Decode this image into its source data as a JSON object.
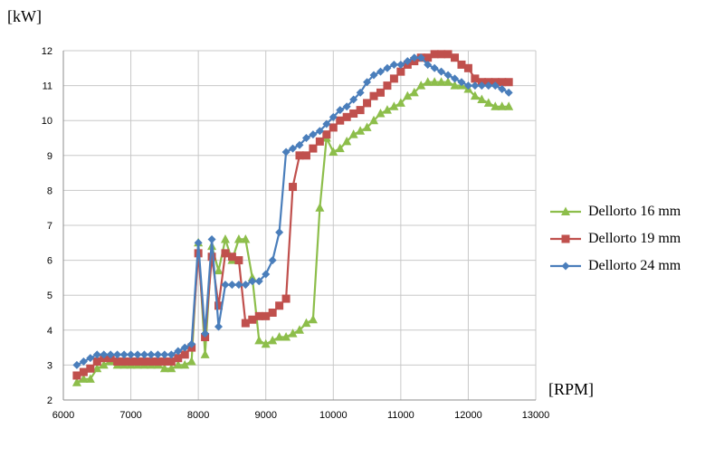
{
  "chart_data": {
    "type": "line",
    "title": "",
    "xlabel": "[RPM]",
    "ylabel": "[kW]",
    "xlim": [
      6000,
      13000
    ],
    "ylim": [
      2,
      12
    ],
    "xticks": [
      6000,
      7000,
      8000,
      9000,
      10000,
      11000,
      12000,
      13000
    ],
    "yticks": [
      2,
      3,
      4,
      5,
      6,
      7,
      8,
      9,
      10,
      11,
      12
    ],
    "grid": true,
    "legend_position": "right",
    "series": [
      {
        "name": "Dellorto 16 mm",
        "color": "#8dbe4b",
        "marker": "triangle",
        "x": [
          6200,
          6300,
          6400,
          6500,
          6600,
          6700,
          6800,
          6900,
          7000,
          7100,
          7200,
          7300,
          7400,
          7500,
          7600,
          7700,
          7800,
          7900,
          8000,
          8100,
          8200,
          8300,
          8400,
          8500,
          8600,
          8700,
          8800,
          8900,
          9000,
          9100,
          9200,
          9300,
          9400,
          9500,
          9600,
          9700,
          9800,
          9900,
          10000,
          10100,
          10200,
          10300,
          10400,
          10500,
          10600,
          10700,
          10800,
          10900,
          11000,
          11100,
          11200,
          11300,
          11400,
          11500,
          11600,
          11700,
          11800,
          11900,
          12000,
          12100,
          12200,
          12300,
          12400,
          12500,
          12600
        ],
        "values": [
          2.5,
          2.6,
          2.6,
          2.9,
          3.0,
          3.1,
          3.0,
          3.0,
          3.0,
          3.0,
          3.0,
          3.0,
          3.0,
          2.9,
          2.9,
          3.0,
          3.0,
          3.1,
          6.5,
          3.3,
          6.4,
          5.7,
          6.6,
          6.0,
          6.6,
          6.6,
          5.5,
          3.7,
          3.6,
          3.7,
          3.8,
          3.8,
          3.9,
          4.0,
          4.2,
          4.3,
          7.5,
          9.5,
          9.1,
          9.2,
          9.4,
          9.6,
          9.7,
          9.8,
          10.0,
          10.2,
          10.3,
          10.4,
          10.5,
          10.7,
          10.8,
          11.0,
          11.1,
          11.1,
          11.1,
          11.1,
          11.0,
          11.0,
          10.9,
          10.7,
          10.6,
          10.5,
          10.4,
          10.4,
          10.4
        ]
      },
      {
        "name": "Dellorto 19 mm",
        "color": "#c0504d",
        "marker": "square",
        "x": [
          6200,
          6300,
          6400,
          6500,
          6600,
          6700,
          6800,
          6900,
          7000,
          7100,
          7200,
          7300,
          7400,
          7500,
          7600,
          7700,
          7800,
          7900,
          8000,
          8100,
          8200,
          8300,
          8400,
          8500,
          8600,
          8700,
          8800,
          8900,
          9000,
          9100,
          9200,
          9300,
          9400,
          9500,
          9600,
          9700,
          9800,
          9900,
          10000,
          10100,
          10200,
          10300,
          10400,
          10500,
          10600,
          10700,
          10800,
          10900,
          11000,
          11100,
          11200,
          11300,
          11400,
          11500,
          11600,
          11700,
          11800,
          11900,
          12000,
          12100,
          12200,
          12300,
          12400,
          12500,
          12600
        ],
        "values": [
          2.7,
          2.8,
          2.9,
          3.1,
          3.2,
          3.2,
          3.1,
          3.1,
          3.1,
          3.1,
          3.1,
          3.1,
          3.1,
          3.1,
          3.1,
          3.2,
          3.3,
          3.5,
          6.2,
          3.8,
          6.1,
          4.7,
          6.2,
          6.1,
          6.0,
          4.2,
          4.3,
          4.4,
          4.4,
          4.5,
          4.7,
          4.9,
          8.1,
          9.0,
          9.0,
          9.2,
          9.4,
          9.6,
          9.8,
          10.0,
          10.1,
          10.2,
          10.3,
          10.5,
          10.7,
          10.8,
          11.0,
          11.2,
          11.4,
          11.6,
          11.7,
          11.8,
          11.8,
          11.9,
          11.9,
          11.9,
          11.8,
          11.6,
          11.5,
          11.2,
          11.1,
          11.1,
          11.1,
          11.1,
          11.1
        ]
      },
      {
        "name": "Dellorto 24 mm",
        "color": "#4a7ebb",
        "marker": "diamond",
        "x": [
          6200,
          6300,
          6400,
          6500,
          6600,
          6700,
          6800,
          6900,
          7000,
          7100,
          7200,
          7300,
          7400,
          7500,
          7600,
          7700,
          7800,
          7900,
          8000,
          8100,
          8200,
          8300,
          8400,
          8500,
          8600,
          8700,
          8800,
          8900,
          9000,
          9100,
          9200,
          9300,
          9400,
          9500,
          9600,
          9700,
          9800,
          9900,
          10000,
          10100,
          10200,
          10300,
          10400,
          10500,
          10600,
          10700,
          10800,
          10900,
          11000,
          11100,
          11200,
          11300,
          11400,
          11500,
          11600,
          11700,
          11800,
          11900,
          12000,
          12100,
          12200,
          12300,
          12400,
          12500,
          12600
        ],
        "values": [
          3.0,
          3.1,
          3.2,
          3.3,
          3.3,
          3.3,
          3.3,
          3.3,
          3.3,
          3.3,
          3.3,
          3.3,
          3.3,
          3.3,
          3.3,
          3.4,
          3.5,
          3.6,
          6.5,
          3.9,
          6.6,
          4.1,
          5.3,
          5.3,
          5.3,
          5.3,
          5.4,
          5.4,
          5.6,
          6.0,
          6.8,
          9.1,
          9.2,
          9.3,
          9.5,
          9.6,
          9.7,
          9.9,
          10.1,
          10.3,
          10.4,
          10.6,
          10.8,
          11.1,
          11.3,
          11.4,
          11.5,
          11.6,
          11.6,
          11.7,
          11.8,
          11.8,
          11.6,
          11.5,
          11.4,
          11.3,
          11.2,
          11.1,
          11.0,
          11.0,
          11.0,
          11.0,
          11.0,
          10.9,
          10.8
        ]
      }
    ]
  }
}
